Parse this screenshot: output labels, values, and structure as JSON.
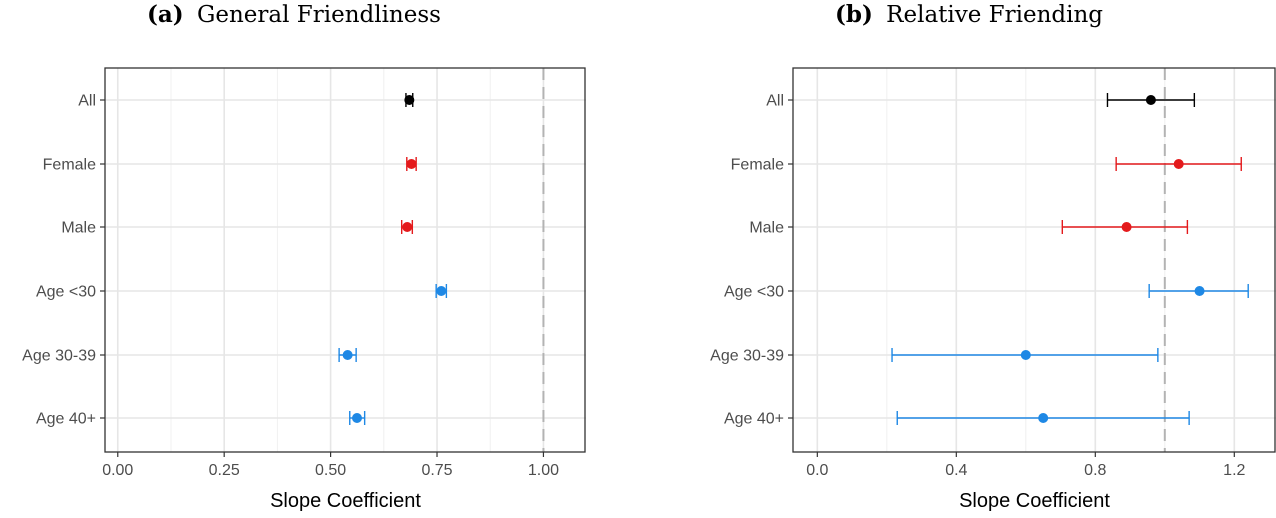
{
  "chart_data": [
    {
      "type": "scatter",
      "panel_label": "(a)",
      "title": "General Friendliness",
      "xlabel": "Slope Coefficient",
      "ylabel": "",
      "xlim": [
        -0.03,
        1.1
      ],
      "xticks": [
        0.0,
        0.25,
        0.5,
        0.75,
        1.0
      ],
      "xtick_labels": [
        "0.00",
        "0.25",
        "0.50",
        "0.75",
        "1.00"
      ],
      "reference_line_x": 1.0,
      "grid": true,
      "categories": [
        "All",
        "Female",
        "Male",
        "Age <30",
        "Age 30-39",
        "Age 40+"
      ],
      "colors": [
        "#000000",
        "#e41a1c",
        "#e41a1c",
        "#1e88e5",
        "#1e88e5",
        "#1e88e5"
      ],
      "estimates": [
        0.685,
        0.69,
        0.68,
        0.76,
        0.54,
        0.562
      ],
      "ci_low": [
        0.677,
        0.679,
        0.667,
        0.748,
        0.52,
        0.545
      ],
      "ci_high": [
        0.693,
        0.701,
        0.692,
        0.772,
        0.56,
        0.58
      ]
    },
    {
      "type": "scatter",
      "panel_label": "(b)",
      "title": "Relative Friending",
      "xlabel": "Slope Coefficient",
      "ylabel": "",
      "xlim": [
        -0.07,
        1.32
      ],
      "xticks": [
        0.0,
        0.4,
        0.8,
        1.2
      ],
      "xtick_labels": [
        "0.0",
        "0.4",
        "0.8",
        "1.2"
      ],
      "reference_line_x": 1.0,
      "grid": true,
      "categories": [
        "All",
        "Female",
        "Male",
        "Age <30",
        "Age 30-39",
        "Age 40+"
      ],
      "colors": [
        "#000000",
        "#e41a1c",
        "#e41a1c",
        "#1e88e5",
        "#1e88e5",
        "#1e88e5"
      ],
      "estimates": [
        0.96,
        1.04,
        0.89,
        1.1,
        0.6,
        0.65
      ],
      "ci_low": [
        0.835,
        0.86,
        0.705,
        0.955,
        0.215,
        0.23
      ],
      "ci_high": [
        1.085,
        1.22,
        1.065,
        1.24,
        0.98,
        1.07
      ]
    }
  ]
}
